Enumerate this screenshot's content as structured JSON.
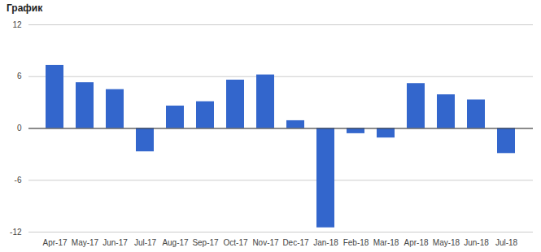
{
  "chart_data": {
    "type": "bar",
    "title": "График",
    "categories": [
      "Apr-17",
      "May-17",
      "Jun-17",
      "Jul-17",
      "Aug-17",
      "Sep-17",
      "Oct-17",
      "Nov-17",
      "Dec-17",
      "Jan-18",
      "Feb-18",
      "Mar-18",
      "Apr-18",
      "May-18",
      "Jun-18",
      "Jul-18"
    ],
    "values": [
      7.3,
      5.3,
      4.5,
      -2.7,
      2.6,
      3.1,
      5.6,
      6.2,
      0.9,
      -11.5,
      -0.6,
      -1.1,
      5.2,
      3.9,
      3.3,
      -2.9
    ],
    "color": "#3366cc",
    "ylim": [
      -12,
      12
    ],
    "yticks": [
      -12,
      -6,
      0,
      6,
      12
    ],
    "grid": true
  }
}
